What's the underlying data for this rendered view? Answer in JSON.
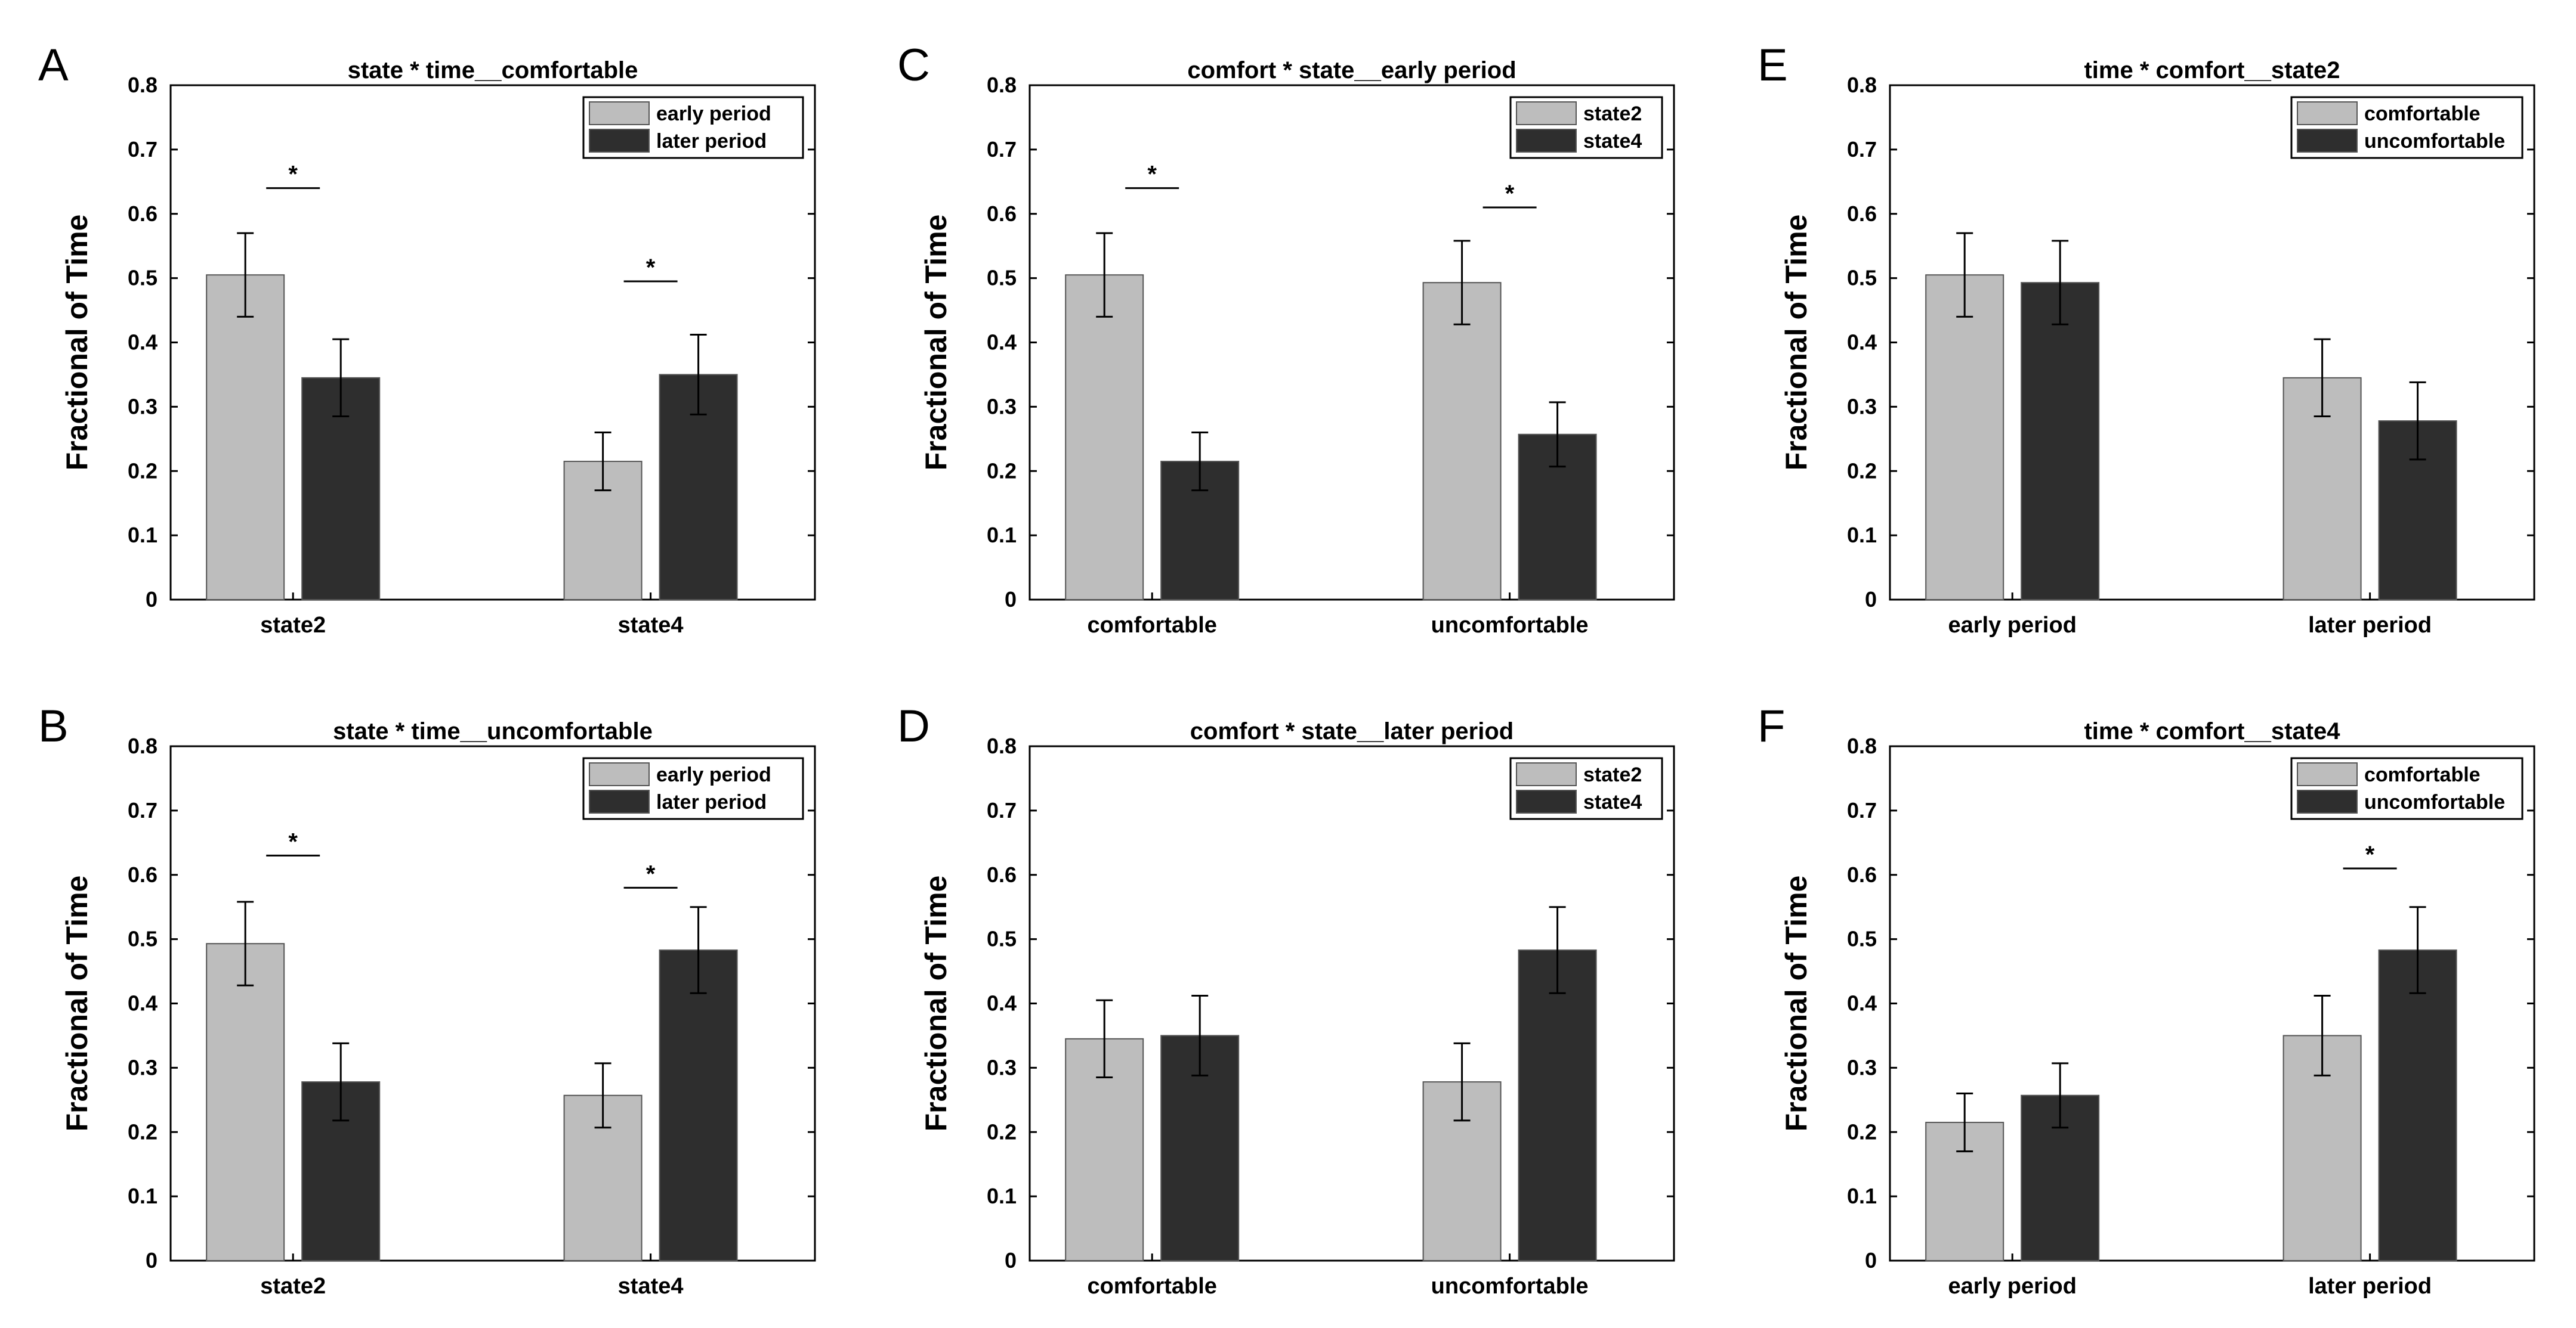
{
  "colors": {
    "light": "#bdbdbd",
    "dark": "#2e2e2e",
    "axis": "#000000"
  },
  "chart_data": [
    {
      "letter": "A",
      "type": "bar",
      "title": "state * time__comfortable",
      "ylabel": "Fractional of Time",
      "ylim": [
        0,
        0.8
      ],
      "yticks": [
        "0",
        "0.1",
        "0.2",
        "0.3",
        "0.4",
        "0.5",
        "0.6",
        "0.7",
        "0.8"
      ],
      "categories": [
        "state2",
        "state4"
      ],
      "legend_position": "top-right",
      "series": [
        {
          "name": "early period",
          "values": [
            0.505,
            0.215
          ],
          "errors": [
            0.065,
            0.045
          ]
        },
        {
          "name": "later period",
          "values": [
            0.345,
            0.35
          ],
          "errors": [
            0.06,
            0.062
          ]
        }
      ],
      "significance": [
        {
          "category": 0,
          "y": 0.64,
          "label": "*"
        },
        {
          "category": 1,
          "y": 0.495,
          "label": "*"
        }
      ]
    },
    {
      "letter": "B",
      "type": "bar",
      "title": "state * time__uncomfortable",
      "ylabel": "Fractional of Time",
      "ylim": [
        0,
        0.8
      ],
      "yticks": [
        "0",
        "0.1",
        "0.2",
        "0.3",
        "0.4",
        "0.5",
        "0.6",
        "0.7",
        "0.8"
      ],
      "categories": [
        "state2",
        "state4"
      ],
      "legend_position": "top-right",
      "series": [
        {
          "name": "early period",
          "values": [
            0.493,
            0.257
          ],
          "errors": [
            0.065,
            0.05
          ]
        },
        {
          "name": "later period",
          "values": [
            0.278,
            0.483
          ],
          "errors": [
            0.06,
            0.067
          ]
        }
      ],
      "significance": [
        {
          "category": 0,
          "y": 0.63,
          "label": "*"
        },
        {
          "category": 1,
          "y": 0.58,
          "label": "*"
        }
      ]
    },
    {
      "letter": "C",
      "type": "bar",
      "title": "comfort * state__early period",
      "ylabel": "Fractional of Time",
      "ylim": [
        0,
        0.8
      ],
      "yticks": [
        "0",
        "0.1",
        "0.2",
        "0.3",
        "0.4",
        "0.5",
        "0.6",
        "0.7",
        "0.8"
      ],
      "categories": [
        "comfortable",
        "uncomfortable"
      ],
      "legend_position": "top-right",
      "series": [
        {
          "name": "state2",
          "values": [
            0.505,
            0.493
          ],
          "errors": [
            0.065,
            0.065
          ]
        },
        {
          "name": "state4",
          "values": [
            0.215,
            0.257
          ],
          "errors": [
            0.045,
            0.05
          ]
        }
      ],
      "significance": [
        {
          "category": 0,
          "y": 0.64,
          "label": "*"
        },
        {
          "category": 1,
          "y": 0.61,
          "label": "*"
        }
      ]
    },
    {
      "letter": "D",
      "type": "bar",
      "title": "comfort * state__later period",
      "ylabel": "Fractional of Time",
      "ylim": [
        0,
        0.8
      ],
      "yticks": [
        "0",
        "0.1",
        "0.2",
        "0.3",
        "0.4",
        "0.5",
        "0.6",
        "0.7",
        "0.8"
      ],
      "categories": [
        "comfortable",
        "uncomfortable"
      ],
      "legend_position": "top-right",
      "series": [
        {
          "name": "state2",
          "values": [
            0.345,
            0.278
          ],
          "errors": [
            0.06,
            0.06
          ]
        },
        {
          "name": "state4",
          "values": [
            0.35,
            0.483
          ],
          "errors": [
            0.062,
            0.067
          ]
        }
      ],
      "significance": []
    },
    {
      "letter": "E",
      "type": "bar",
      "title": "time * comfort__state2",
      "ylabel": "Fractional of Time",
      "ylim": [
        0,
        0.8
      ],
      "yticks": [
        "0",
        "0.1",
        "0.2",
        "0.3",
        "0.4",
        "0.5",
        "0.6",
        "0.7",
        "0.8"
      ],
      "categories": [
        "early period",
        "later period"
      ],
      "legend_position": "top-right",
      "series": [
        {
          "name": "comfortable",
          "values": [
            0.505,
            0.345
          ],
          "errors": [
            0.065,
            0.06
          ]
        },
        {
          "name": "uncomfortable",
          "values": [
            0.493,
            0.278
          ],
          "errors": [
            0.065,
            0.06
          ]
        }
      ],
      "significance": []
    },
    {
      "letter": "F",
      "type": "bar",
      "title": "time * comfort__state4",
      "ylabel": "Fractional of Time",
      "ylim": [
        0,
        0.8
      ],
      "yticks": [
        "0",
        "0.1",
        "0.2",
        "0.3",
        "0.4",
        "0.5",
        "0.6",
        "0.7",
        "0.8"
      ],
      "categories": [
        "early period",
        "later period"
      ],
      "legend_position": "top-right",
      "series": [
        {
          "name": "comfortable",
          "values": [
            0.215,
            0.35
          ],
          "errors": [
            0.045,
            0.062
          ]
        },
        {
          "name": "uncomfortable",
          "values": [
            0.257,
            0.483
          ],
          "errors": [
            0.05,
            0.067
          ]
        }
      ],
      "significance": [
        {
          "category": 1,
          "y": 0.61,
          "label": "*"
        }
      ]
    }
  ]
}
